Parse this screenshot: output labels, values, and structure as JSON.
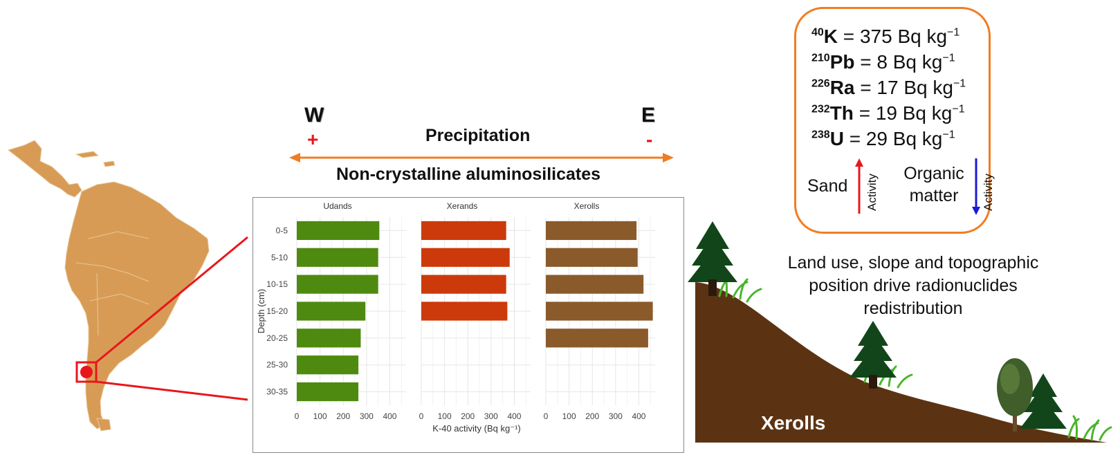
{
  "gradient": {
    "west_label": "W",
    "east_label": "E",
    "west_sign": "+",
    "east_sign": "-",
    "precipitation_label": "Precipitation",
    "subtitle": "Non-crystalline aluminosilicates",
    "arrow_color": "#f07d22"
  },
  "chart_data": {
    "type": "bar",
    "orientation": "horizontal",
    "facets": [
      "Udands",
      "Xerands",
      "Xerolls"
    ],
    "categories": [
      "0-5",
      "5-10",
      "10-15",
      "15-20",
      "20-25",
      "25-30",
      "30-35"
    ],
    "series": [
      {
        "facet": "Udands",
        "color": "#4e8a0f",
        "values": [
          355,
          350,
          350,
          295,
          275,
          265,
          265
        ]
      },
      {
        "facet": "Xerands",
        "color": "#cc3a0b",
        "values": [
          365,
          380,
          365,
          370,
          null,
          null,
          null
        ]
      },
      {
        "facet": "Xerolls",
        "color": "#8b5a2b",
        "values": [
          390,
          395,
          420,
          460,
          440,
          null,
          null
        ]
      }
    ],
    "x_ticks": [
      "0",
      "100",
      "200",
      "300",
      "400"
    ],
    "xlim": [
      0,
      470
    ],
    "xlabel": "K-40 activity (Bq kg⁻¹)",
    "ylabel": "Depth (cm)",
    "grid": true
  },
  "radionuclides": [
    {
      "isotope": "40",
      "element": "K",
      "value": "= 375 Bq kg",
      "exp": "−1"
    },
    {
      "isotope": "210",
      "element": "Pb",
      "value": "= 8 Bq kg",
      "exp": "−1"
    },
    {
      "isotope": "226",
      "element": "Ra",
      "value": "= 17 Bq kg",
      "exp": "−1"
    },
    {
      "isotope": "232",
      "element": "Th",
      "value": "= 19 Bq kg",
      "exp": "−1"
    },
    {
      "isotope": "238",
      "element": "U",
      "value": "= 29 Bq kg",
      "exp": "−1"
    }
  ],
  "activity_legend": {
    "sand_label": "Sand",
    "organic_label_line1": "Organic",
    "organic_label_line2": "matter",
    "activity_label": "Activity",
    "sand_arrow_color": "#e8161c",
    "organic_arrow_color": "#1a1ad6"
  },
  "landscape": {
    "caption_line1": "Land use, slope and topographic",
    "caption_line2": "position drive radionuclides",
    "caption_line3": "redistribution",
    "soil_label": "Xerolls",
    "soil_color": "#5c3312",
    "tree_color": "#12461a",
    "grass_color": "#49b52a"
  },
  "map": {
    "land_color": "#d79b55",
    "marker_color": "#e8161c"
  }
}
